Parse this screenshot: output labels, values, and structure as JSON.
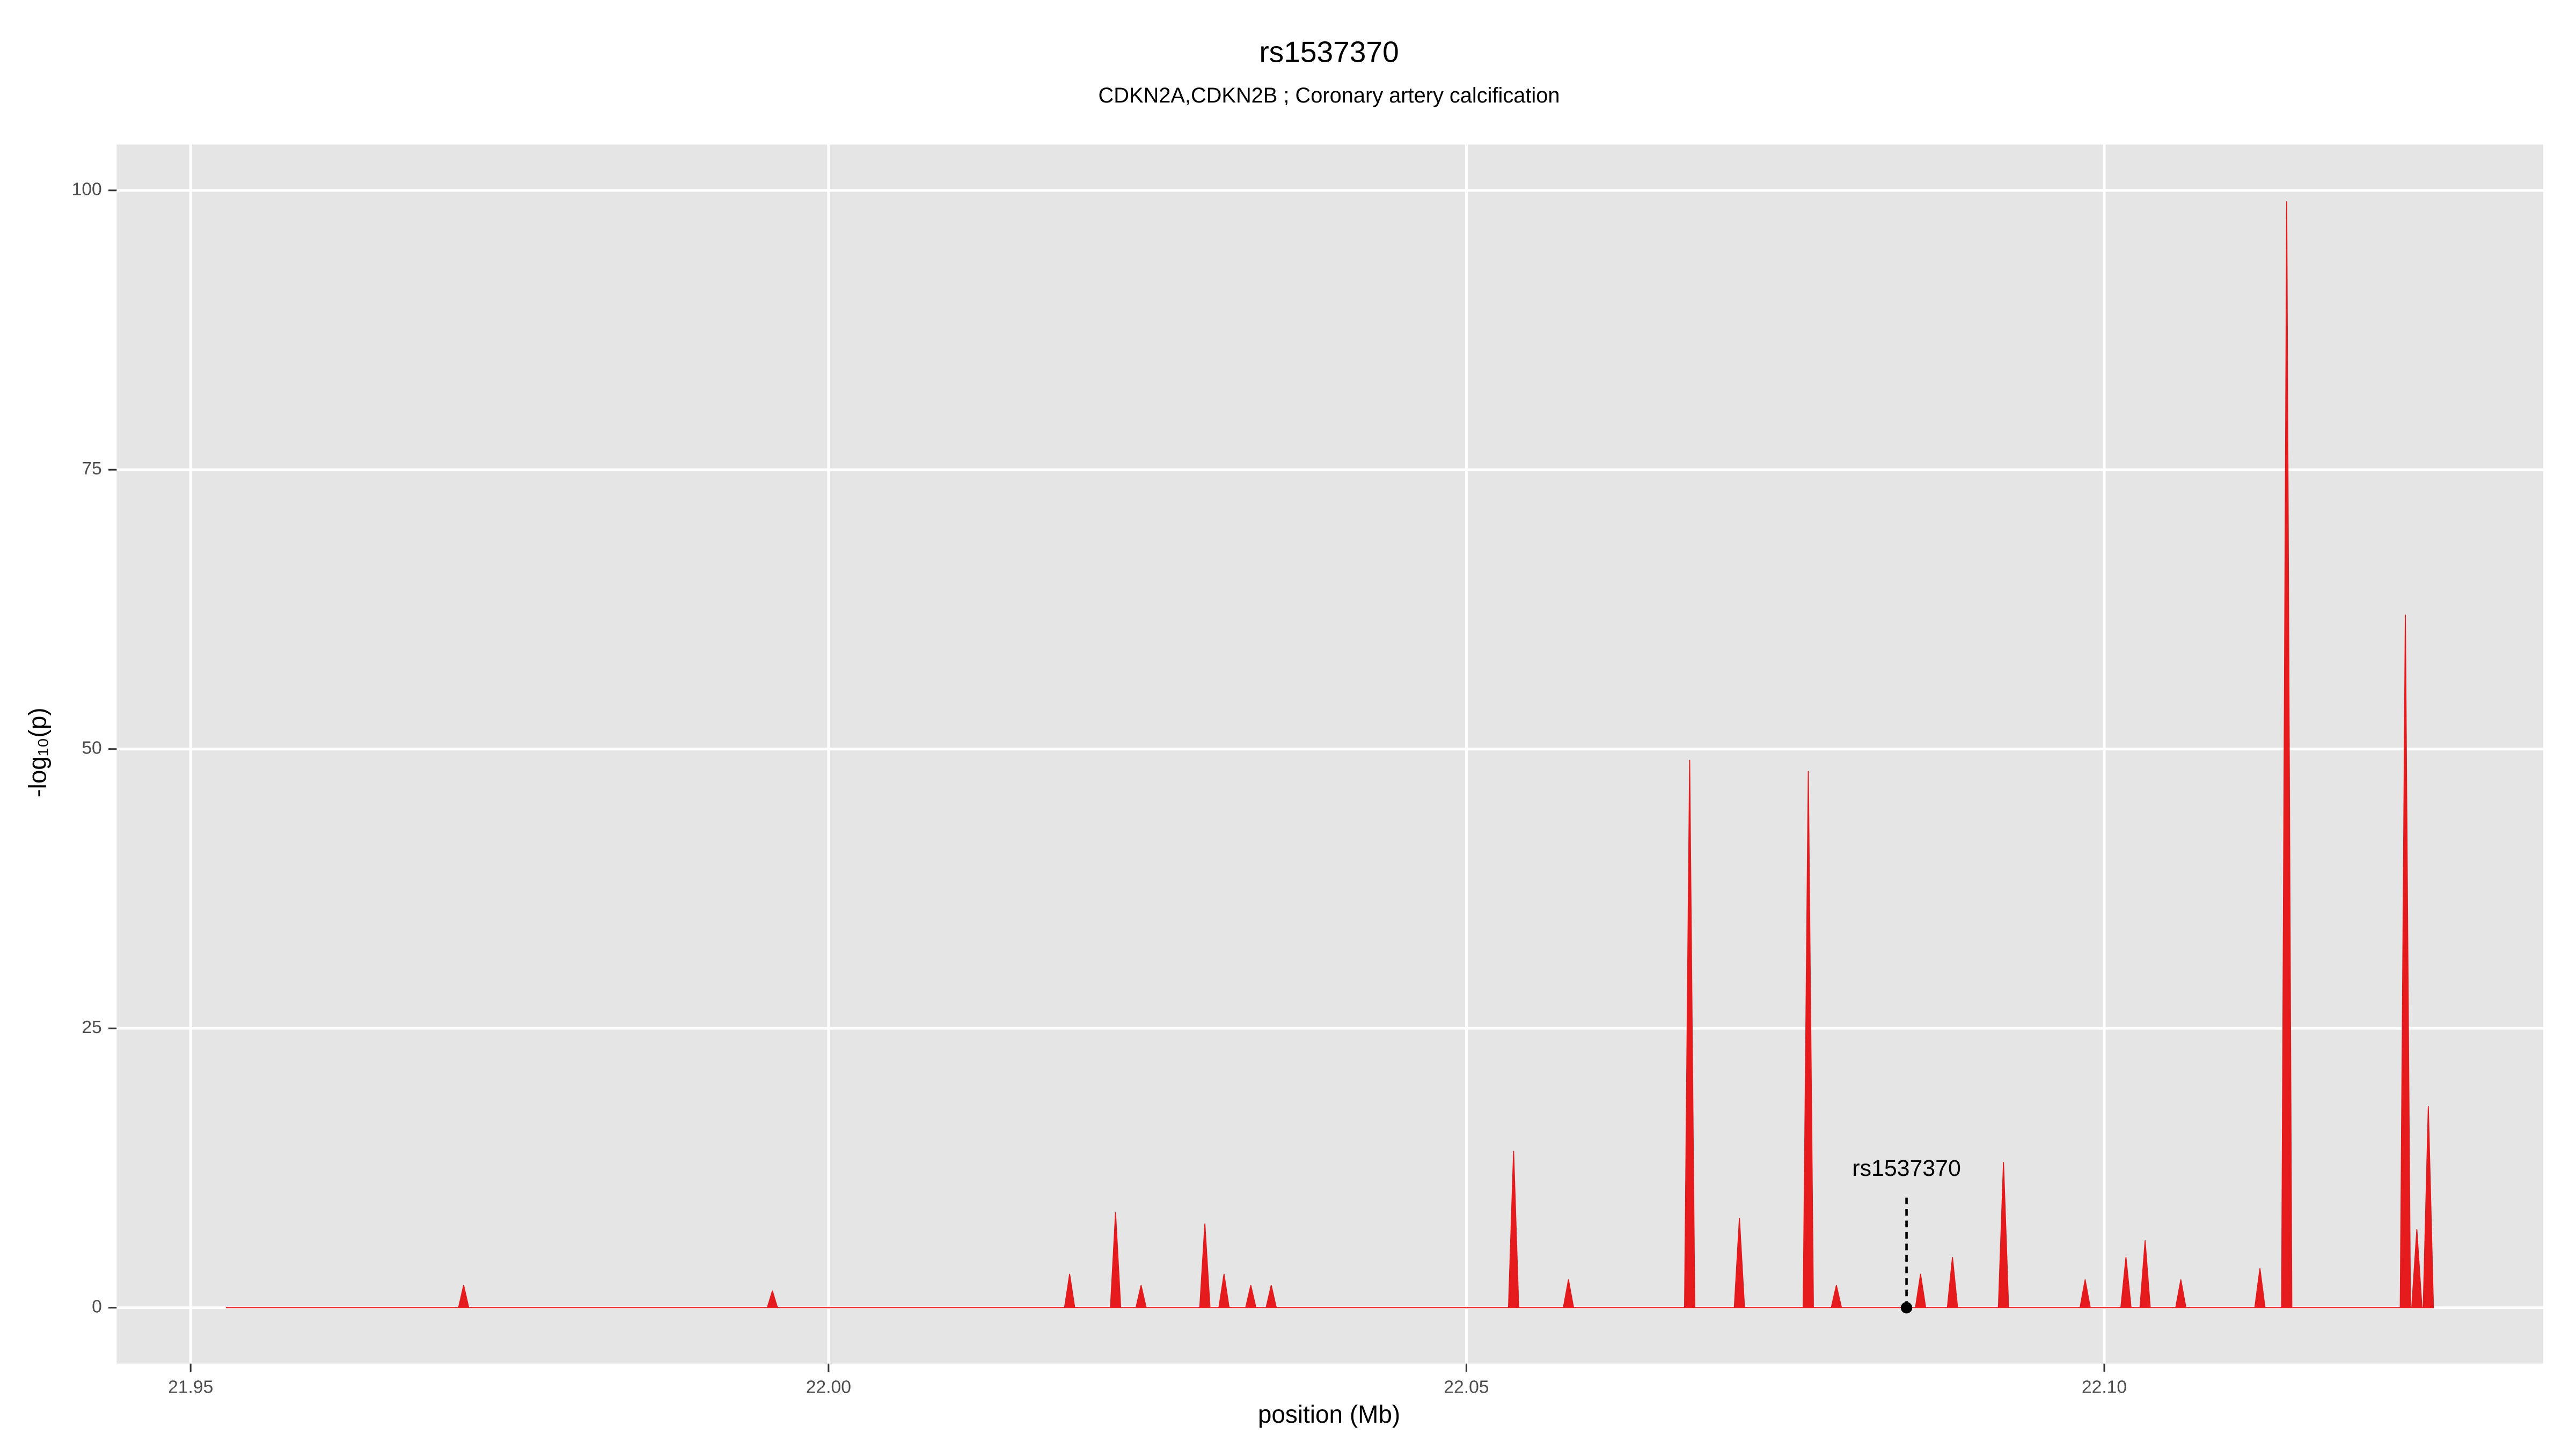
{
  "chart_data": {
    "type": "area",
    "title": "rs1537370",
    "subtitle": "CDKN2A,CDKN2B ; Coronary artery calcification",
    "x_label": "position (Mb)",
    "y_label": "-log₁₀(p)",
    "x": [
      21.9528,
      21.971,
      21.9714,
      21.9718,
      21.9952,
      21.9956,
      21.996,
      22.0185,
      22.0189,
      22.0193,
      22.0221,
      22.0225,
      22.0229,
      22.0241,
      22.0245,
      22.0249,
      22.0291,
      22.0295,
      22.0299,
      22.0306,
      22.031,
      22.0314,
      22.0327,
      22.0331,
      22.0335,
      22.0343,
      22.0347,
      22.0351,
      22.0533,
      22.0537,
      22.0541,
      22.0576,
      22.058,
      22.0584,
      22.0671,
      22.0675,
      22.0679,
      22.071,
      22.0714,
      22.0718,
      22.0764,
      22.0768,
      22.0772,
      22.0786,
      22.079,
      22.0794,
      22.0852,
      22.0856,
      22.086,
      22.0877,
      22.0881,
      22.0885,
      22.0917,
      22.0921,
      22.0925,
      22.0981,
      22.0985,
      22.0989,
      22.1013,
      22.1017,
      22.1021,
      22.1028,
      22.1032,
      22.1036,
      22.1056,
      22.106,
      22.1064,
      22.1118,
      22.1122,
      22.1126,
      22.1139,
      22.1143,
      22.1147,
      22.1232,
      22.1236,
      22.124,
      22.1241,
      22.1245,
      22.1249,
      22.125,
      22.1254,
      22.1258
    ],
    "series": [
      {
        "color": "#e41a1c",
        "values": [
          0,
          0,
          2,
          0,
          0,
          1.5,
          0,
          0,
          3,
          0,
          0,
          8.5,
          0,
          0,
          2,
          0,
          0,
          7.5,
          0,
          0,
          3,
          0,
          0,
          2,
          0,
          0,
          2,
          0,
          0,
          14,
          0,
          0,
          2.5,
          0,
          0,
          49,
          0,
          0,
          8,
          0,
          0,
          48,
          0,
          0,
          2,
          0,
          0,
          3,
          0,
          0,
          4.5,
          0,
          0,
          13,
          0,
          0,
          2.5,
          0,
          0,
          4.5,
          0,
          0,
          6,
          0,
          0,
          2.5,
          0,
          0,
          3.5,
          0,
          0,
          99,
          0,
          0,
          62,
          0,
          0,
          7,
          0,
          0,
          18,
          0
        ]
      }
    ],
    "annotations": [
      {
        "text": "rs1537370",
        "x": 22.0845,
        "y": 0
      }
    ],
    "xlim": [
      21.9442,
      22.1344
    ],
    "ylim": [
      -5,
      104.1
    ],
    "xticks": [
      21.95,
      {
        "value": 22,
        "label": "22.00"
      },
      22.05,
      {
        "value": 22.1,
        "label": "22.10"
      }
    ],
    "yticks": [
      0,
      25,
      50,
      75,
      100
    ],
    "grid": true
  }
}
